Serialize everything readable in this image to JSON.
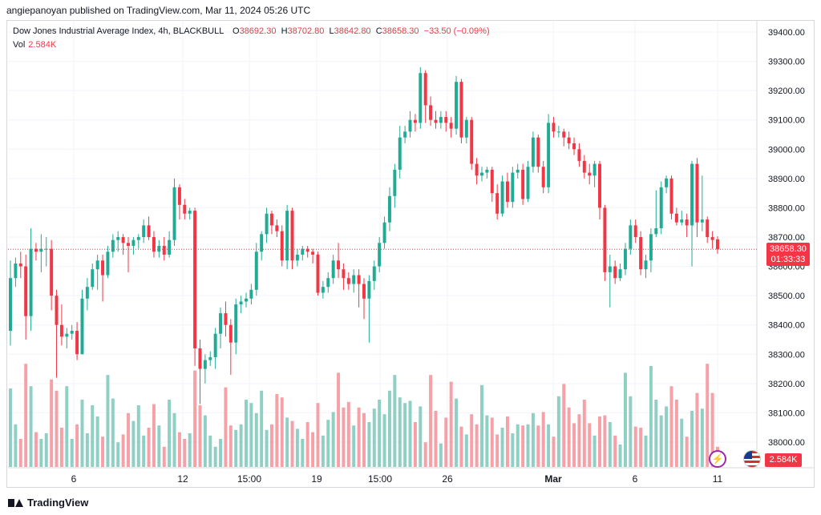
{
  "header": {
    "publisher_line": "angiepanoyan published on TradingView.com, Mar 11, 2024 05:26 UTC"
  },
  "legend": {
    "symbol": "Dow Jones Industrial Average Index, 4h, BLACKBULL",
    "o_key": "O",
    "o_val": "38692.30",
    "h_key": "H",
    "h_val": "38702.80",
    "l_key": "L",
    "l_val": "38642.80",
    "c_key": "C",
    "c_val": "38658.30",
    "change": "−33.50 (−0.09%)",
    "vol_label": "Vol",
    "vol_val": "2.584K"
  },
  "price_tag": {
    "price": "38658.30",
    "countdown": "01:33:33"
  },
  "vol_tag": "2.584K",
  "footer": {
    "brand": "TradingView"
  },
  "colors": {
    "up": "#22ab94",
    "down": "#f23645",
    "up_vol": "#8fcfc4",
    "down_vol": "#f6a1a7",
    "grid": "#f0f3fa"
  },
  "chart_data": {
    "type": "candlestick",
    "y_ticks": [
      "39400.00",
      "39300.00",
      "39200.00",
      "39100.00",
      "39000.00",
      "38900.00",
      "38800.00",
      "38700.00",
      "38600.00",
      "38500.00",
      "38400.00",
      "38300.00",
      "38200.00",
      "38100.00",
      "38000.00"
    ],
    "ylim": [
      37920,
      39440
    ],
    "x_tick_labels": [
      "6",
      "12",
      "15:00",
      "19",
      "15:00",
      "26",
      "Mar",
      "6",
      "11"
    ],
    "last_price": 38658.3,
    "candles": [
      [
        38380,
        38560,
        38620,
        38330
      ],
      [
        38560,
        38610,
        38630,
        38530
      ],
      [
        38610,
        38600,
        38650,
        38560
      ],
      [
        38600,
        38430,
        38640,
        38350
      ],
      [
        38430,
        38660,
        38730,
        38380
      ],
      [
        38660,
        38650,
        38680,
        38620
      ],
      [
        38650,
        38660,
        38710,
        38580
      ],
      [
        38660,
        38660,
        38700,
        38600
      ],
      [
        38660,
        38500,
        38690,
        38450
      ],
      [
        38500,
        38400,
        38520,
        38220
      ],
      [
        38400,
        38360,
        38470,
        38330
      ],
      [
        38360,
        38370,
        38390,
        38320
      ],
      [
        38370,
        38380,
        38400,
        38350
      ],
      [
        38380,
        38300,
        38410,
        38280
      ],
      [
        38300,
        38490,
        38520,
        38300
      ],
      [
        38490,
        38530,
        38560,
        38450
      ],
      [
        38530,
        38590,
        38610,
        38520
      ],
      [
        38590,
        38620,
        38640,
        38520
      ],
      [
        38620,
        38570,
        38640,
        38480
      ],
      [
        38570,
        38650,
        38670,
        38560
      ],
      [
        38650,
        38690,
        38710,
        38630
      ],
      [
        38690,
        38700,
        38720,
        38650
      ],
      [
        38700,
        38680,
        38710,
        38640
      ],
      [
        38680,
        38670,
        38700,
        38580
      ],
      [
        38670,
        38690,
        38700,
        38640
      ],
      [
        38690,
        38700,
        38710,
        38660
      ],
      [
        38700,
        38740,
        38760,
        38680
      ],
      [
        38740,
        38700,
        38770,
        38690
      ],
      [
        38700,
        38650,
        38720,
        38630
      ],
      [
        38650,
        38670,
        38690,
        38630
      ],
      [
        38670,
        38640,
        38700,
        38620
      ],
      [
        38640,
        38690,
        38720,
        38630
      ],
      [
        38690,
        38870,
        38900,
        38670
      ],
      [
        38870,
        38810,
        38880,
        38760
      ],
      [
        38810,
        38780,
        38830,
        38760
      ],
      [
        38780,
        38790,
        38800,
        38760
      ],
      [
        38790,
        38320,
        38800,
        38260
      ],
      [
        38320,
        38250,
        38350,
        38130
      ],
      [
        38250,
        38280,
        38300,
        38200
      ],
      [
        38280,
        38290,
        38310,
        38260
      ],
      [
        38290,
        38370,
        38390,
        38250
      ],
      [
        38370,
        38440,
        38460,
        38320
      ],
      [
        38440,
        38400,
        38480,
        38360
      ],
      [
        38400,
        38340,
        38420,
        38230
      ],
      [
        38340,
        38470,
        38490,
        38300
      ],
      [
        38470,
        38480,
        38500,
        38440
      ],
      [
        38480,
        38490,
        38510,
        38460
      ],
      [
        38490,
        38520,
        38540,
        38470
      ],
      [
        38520,
        38650,
        38680,
        38500
      ],
      [
        38650,
        38710,
        38720,
        38620
      ],
      [
        38710,
        38780,
        38800,
        38680
      ],
      [
        38780,
        38740,
        38790,
        38710
      ],
      [
        38740,
        38720,
        38760,
        38700
      ],
      [
        38720,
        38620,
        38740,
        38600
      ],
      [
        38620,
        38790,
        38810,
        38590
      ],
      [
        38790,
        38620,
        38800,
        38590
      ],
      [
        38620,
        38640,
        38660,
        38600
      ],
      [
        38640,
        38660,
        38670,
        38620
      ],
      [
        38660,
        38650,
        38670,
        38630
      ],
      [
        38650,
        38640,
        38660,
        38610
      ],
      [
        38640,
        38510,
        38650,
        38500
      ],
      [
        38510,
        38530,
        38550,
        38490
      ],
      [
        38530,
        38560,
        38580,
        38510
      ],
      [
        38560,
        38620,
        38640,
        38540
      ],
      [
        38620,
        38590,
        38680,
        38560
      ],
      [
        38590,
        38560,
        38610,
        38520
      ],
      [
        38560,
        38540,
        38580,
        38520
      ],
      [
        38540,
        38570,
        38590,
        38510
      ],
      [
        38570,
        38540,
        38590,
        38460
      ],
      [
        38540,
        38490,
        38560,
        38420
      ],
      [
        38490,
        38550,
        38570,
        38340
      ],
      [
        38550,
        38600,
        38620,
        38520
      ],
      [
        38600,
        38680,
        38700,
        38580
      ],
      [
        38680,
        38750,
        38770,
        38660
      ],
      [
        38750,
        38840,
        38870,
        38720
      ],
      [
        38840,
        38930,
        38950,
        38800
      ],
      [
        38930,
        39040,
        39080,
        38900
      ],
      [
        39040,
        39060,
        39080,
        39020
      ],
      [
        39060,
        39100,
        39130,
        39040
      ],
      [
        39100,
        39090,
        39120,
        39060
      ],
      [
        39090,
        39260,
        39280,
        39070
      ],
      [
        39260,
        39150,
        39270,
        39090
      ],
      [
        39150,
        39100,
        39180,
        39080
      ],
      [
        39100,
        39090,
        39130,
        39070
      ],
      [
        39090,
        39110,
        39130,
        39070
      ],
      [
        39110,
        39090,
        39130,
        39060
      ],
      [
        39090,
        39070,
        39110,
        39040
      ],
      [
        39070,
        39230,
        39250,
        39050
      ],
      [
        39230,
        39040,
        39240,
        39020
      ],
      [
        39040,
        39100,
        39110,
        39020
      ],
      [
        39100,
        38950,
        39110,
        38930
      ],
      [
        38950,
        38910,
        38970,
        38880
      ],
      [
        38910,
        38920,
        38940,
        38890
      ],
      [
        38920,
        38930,
        38940,
        38900
      ],
      [
        38930,
        38850,
        38940,
        38820
      ],
      [
        38850,
        38780,
        38880,
        38760
      ],
      [
        38780,
        38890,
        38910,
        38770
      ],
      [
        38890,
        38820,
        38920,
        38800
      ],
      [
        38820,
        38920,
        38940,
        38800
      ],
      [
        38920,
        38930,
        38950,
        38900
      ],
      [
        38930,
        38830,
        38950,
        38810
      ],
      [
        38830,
        38940,
        38960,
        38820
      ],
      [
        38940,
        39040,
        39060,
        38920
      ],
      [
        39040,
        38940,
        39050,
        38920
      ],
      [
        38940,
        38870,
        38960,
        38850
      ],
      [
        38870,
        39090,
        39120,
        38850
      ],
      [
        39090,
        39060,
        39110,
        39040
      ],
      [
        39060,
        39060,
        39080,
        39040
      ],
      [
        39060,
        39040,
        39070,
        39010
      ],
      [
        39040,
        39020,
        39060,
        39000
      ],
      [
        39020,
        39000,
        39040,
        38980
      ],
      [
        39000,
        38960,
        39020,
        38940
      ],
      [
        38960,
        38920,
        38980,
        38900
      ],
      [
        38920,
        38910,
        38950,
        38880
      ],
      [
        38910,
        38950,
        38960,
        38870
      ],
      [
        38950,
        38800,
        38960,
        38760
      ],
      [
        38800,
        38580,
        38810,
        38550
      ],
      [
        38580,
        38600,
        38640,
        38460
      ],
      [
        38600,
        38560,
        38620,
        38540
      ],
      [
        38560,
        38590,
        38610,
        38550
      ],
      [
        38590,
        38660,
        38680,
        38570
      ],
      [
        38660,
        38740,
        38760,
        38640
      ],
      [
        38740,
        38700,
        38760,
        38680
      ],
      [
        38700,
        38590,
        38720,
        38570
      ],
      [
        38590,
        38620,
        38640,
        38560
      ],
      [
        38620,
        38710,
        38730,
        38580
      ],
      [
        38710,
        38730,
        38860,
        38700
      ],
      [
        38730,
        38870,
        38890,
        38710
      ],
      [
        38870,
        38900,
        38910,
        38850
      ],
      [
        38900,
        38780,
        38910,
        38760
      ],
      [
        38780,
        38750,
        38800,
        38740
      ],
      [
        38750,
        38760,
        38790,
        38740
      ],
      [
        38760,
        38740,
        38780,
        38700
      ],
      [
        38740,
        38950,
        38960,
        38600
      ],
      [
        38950,
        38750,
        38970,
        38700
      ],
      [
        38750,
        38760,
        38910,
        38720
      ],
      [
        38760,
        38700,
        38770,
        38680
      ],
      [
        38700,
        38690,
        38720,
        38660
      ],
      [
        38692.3,
        38658.3,
        38702.8,
        38642.8
      ]
    ],
    "volumes": [
      0.7,
      0.38,
      0.25,
      0.92,
      0.72,
      0.31,
      0.25,
      0.3,
      0.78,
      0.68,
      0.35,
      0.72,
      0.25,
      0.38,
      0.6,
      0.3,
      0.55,
      0.45,
      0.27,
      0.82,
      0.61,
      0.22,
      0.29,
      0.48,
      0.41,
      0.55,
      0.28,
      0.35,
      0.56,
      0.37,
      0.18,
      0.6,
      0.48,
      0.31,
      0.25,
      0.3,
      0.86,
      0.55,
      0.46,
      0.28,
      0.18,
      0.25,
      0.71,
      0.37,
      0.33,
      0.38,
      0.6,
      0.57,
      0.48,
      0.68,
      0.33,
      0.38,
      0.65,
      0.62,
      0.44,
      0.41,
      0.34,
      0.25,
      0.4,
      0.31,
      0.57,
      0.28,
      0.42,
      0.49,
      0.84,
      0.53,
      0.58,
      0.37,
      0.53,
      0.48,
      0.4,
      0.52,
      0.6,
      0.47,
      0.68,
      0.82,
      0.62,
      0.57,
      0.59,
      0.4,
      0.54,
      0.22,
      0.82,
      0.5,
      0.21,
      0.44,
      0.76,
      0.61,
      0.36,
      0.29,
      0.47,
      0.38,
      0.73,
      0.46,
      0.44,
      0.29,
      0.35,
      0.45,
      0.3,
      0.38,
      0.37,
      0.38,
      0.48,
      0.37,
      0.49,
      0.38,
      0.27,
      0.63,
      0.74,
      0.53,
      0.39,
      0.47,
      0.6,
      0.39,
      0.28,
      0.45,
      0.46,
      0.4,
      0.28,
      0.2,
      0.84,
      0.63,
      0.36,
      0.35,
      0.28,
      0.9,
      0.6,
      0.46,
      0.54,
      0.72,
      0.6,
      0.43,
      0.27,
      0.5,
      0.66,
      0.52,
      0.92,
      0.66,
      0.18
    ]
  }
}
